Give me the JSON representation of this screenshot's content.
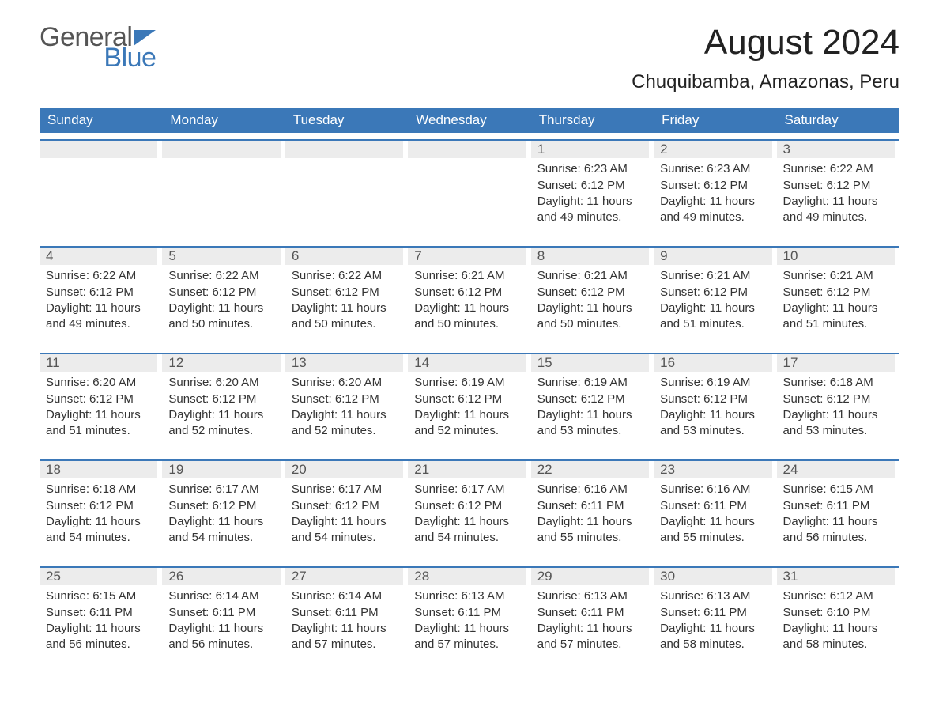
{
  "brand": {
    "word1": "General",
    "word2": "Blue",
    "accent_color": "#3b78b8",
    "text_color": "#555555"
  },
  "title": "August 2024",
  "location": "Chuquibamba, Amazonas, Peru",
  "colors": {
    "header_bg": "#3b78b8",
    "header_text": "#ffffff",
    "daynum_bg": "#ececec",
    "daynum_text": "#555555",
    "body_text": "#333333",
    "rule": "#3b78b8",
    "page_bg": "#ffffff"
  },
  "weekdays": [
    "Sunday",
    "Monday",
    "Tuesday",
    "Wednesday",
    "Thursday",
    "Friday",
    "Saturday"
  ],
  "weeks": [
    [
      {
        "empty": true
      },
      {
        "empty": true
      },
      {
        "empty": true
      },
      {
        "empty": true
      },
      {
        "num": "1",
        "sunrise": "Sunrise: 6:23 AM",
        "sunset": "Sunset: 6:12 PM",
        "daylight": "Daylight: 11 hours and 49 minutes."
      },
      {
        "num": "2",
        "sunrise": "Sunrise: 6:23 AM",
        "sunset": "Sunset: 6:12 PM",
        "daylight": "Daylight: 11 hours and 49 minutes."
      },
      {
        "num": "3",
        "sunrise": "Sunrise: 6:22 AM",
        "sunset": "Sunset: 6:12 PM",
        "daylight": "Daylight: 11 hours and 49 minutes."
      }
    ],
    [
      {
        "num": "4",
        "sunrise": "Sunrise: 6:22 AM",
        "sunset": "Sunset: 6:12 PM",
        "daylight": "Daylight: 11 hours and 49 minutes."
      },
      {
        "num": "5",
        "sunrise": "Sunrise: 6:22 AM",
        "sunset": "Sunset: 6:12 PM",
        "daylight": "Daylight: 11 hours and 50 minutes."
      },
      {
        "num": "6",
        "sunrise": "Sunrise: 6:22 AM",
        "sunset": "Sunset: 6:12 PM",
        "daylight": "Daylight: 11 hours and 50 minutes."
      },
      {
        "num": "7",
        "sunrise": "Sunrise: 6:21 AM",
        "sunset": "Sunset: 6:12 PM",
        "daylight": "Daylight: 11 hours and 50 minutes."
      },
      {
        "num": "8",
        "sunrise": "Sunrise: 6:21 AM",
        "sunset": "Sunset: 6:12 PM",
        "daylight": "Daylight: 11 hours and 50 minutes."
      },
      {
        "num": "9",
        "sunrise": "Sunrise: 6:21 AM",
        "sunset": "Sunset: 6:12 PM",
        "daylight": "Daylight: 11 hours and 51 minutes."
      },
      {
        "num": "10",
        "sunrise": "Sunrise: 6:21 AM",
        "sunset": "Sunset: 6:12 PM",
        "daylight": "Daylight: 11 hours and 51 minutes."
      }
    ],
    [
      {
        "num": "11",
        "sunrise": "Sunrise: 6:20 AM",
        "sunset": "Sunset: 6:12 PM",
        "daylight": "Daylight: 11 hours and 51 minutes."
      },
      {
        "num": "12",
        "sunrise": "Sunrise: 6:20 AM",
        "sunset": "Sunset: 6:12 PM",
        "daylight": "Daylight: 11 hours and 52 minutes."
      },
      {
        "num": "13",
        "sunrise": "Sunrise: 6:20 AM",
        "sunset": "Sunset: 6:12 PM",
        "daylight": "Daylight: 11 hours and 52 minutes."
      },
      {
        "num": "14",
        "sunrise": "Sunrise: 6:19 AM",
        "sunset": "Sunset: 6:12 PM",
        "daylight": "Daylight: 11 hours and 52 minutes."
      },
      {
        "num": "15",
        "sunrise": "Sunrise: 6:19 AM",
        "sunset": "Sunset: 6:12 PM",
        "daylight": "Daylight: 11 hours and 53 minutes."
      },
      {
        "num": "16",
        "sunrise": "Sunrise: 6:19 AM",
        "sunset": "Sunset: 6:12 PM",
        "daylight": "Daylight: 11 hours and 53 minutes."
      },
      {
        "num": "17",
        "sunrise": "Sunrise: 6:18 AM",
        "sunset": "Sunset: 6:12 PM",
        "daylight": "Daylight: 11 hours and 53 minutes."
      }
    ],
    [
      {
        "num": "18",
        "sunrise": "Sunrise: 6:18 AM",
        "sunset": "Sunset: 6:12 PM",
        "daylight": "Daylight: 11 hours and 54 minutes."
      },
      {
        "num": "19",
        "sunrise": "Sunrise: 6:17 AM",
        "sunset": "Sunset: 6:12 PM",
        "daylight": "Daylight: 11 hours and 54 minutes."
      },
      {
        "num": "20",
        "sunrise": "Sunrise: 6:17 AM",
        "sunset": "Sunset: 6:12 PM",
        "daylight": "Daylight: 11 hours and 54 minutes."
      },
      {
        "num": "21",
        "sunrise": "Sunrise: 6:17 AM",
        "sunset": "Sunset: 6:12 PM",
        "daylight": "Daylight: 11 hours and 54 minutes."
      },
      {
        "num": "22",
        "sunrise": "Sunrise: 6:16 AM",
        "sunset": "Sunset: 6:11 PM",
        "daylight": "Daylight: 11 hours and 55 minutes."
      },
      {
        "num": "23",
        "sunrise": "Sunrise: 6:16 AM",
        "sunset": "Sunset: 6:11 PM",
        "daylight": "Daylight: 11 hours and 55 minutes."
      },
      {
        "num": "24",
        "sunrise": "Sunrise: 6:15 AM",
        "sunset": "Sunset: 6:11 PM",
        "daylight": "Daylight: 11 hours and 56 minutes."
      }
    ],
    [
      {
        "num": "25",
        "sunrise": "Sunrise: 6:15 AM",
        "sunset": "Sunset: 6:11 PM",
        "daylight": "Daylight: 11 hours and 56 minutes."
      },
      {
        "num": "26",
        "sunrise": "Sunrise: 6:14 AM",
        "sunset": "Sunset: 6:11 PM",
        "daylight": "Daylight: 11 hours and 56 minutes."
      },
      {
        "num": "27",
        "sunrise": "Sunrise: 6:14 AM",
        "sunset": "Sunset: 6:11 PM",
        "daylight": "Daylight: 11 hours and 57 minutes."
      },
      {
        "num": "28",
        "sunrise": "Sunrise: 6:13 AM",
        "sunset": "Sunset: 6:11 PM",
        "daylight": "Daylight: 11 hours and 57 minutes."
      },
      {
        "num": "29",
        "sunrise": "Sunrise: 6:13 AM",
        "sunset": "Sunset: 6:11 PM",
        "daylight": "Daylight: 11 hours and 57 minutes."
      },
      {
        "num": "30",
        "sunrise": "Sunrise: 6:13 AM",
        "sunset": "Sunset: 6:11 PM",
        "daylight": "Daylight: 11 hours and 58 minutes."
      },
      {
        "num": "31",
        "sunrise": "Sunrise: 6:12 AM",
        "sunset": "Sunset: 6:10 PM",
        "daylight": "Daylight: 11 hours and 58 minutes."
      }
    ]
  ]
}
